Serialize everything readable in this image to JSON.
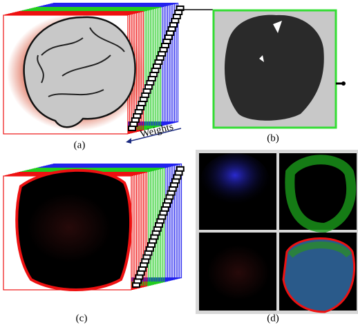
{
  "panels": [
    {
      "label": "(a)"
    },
    {
      "label": "(b)"
    },
    {
      "label": "(c)"
    },
    {
      "label": "(d)"
    }
  ],
  "annotations": {
    "weights": "Weights"
  }
}
